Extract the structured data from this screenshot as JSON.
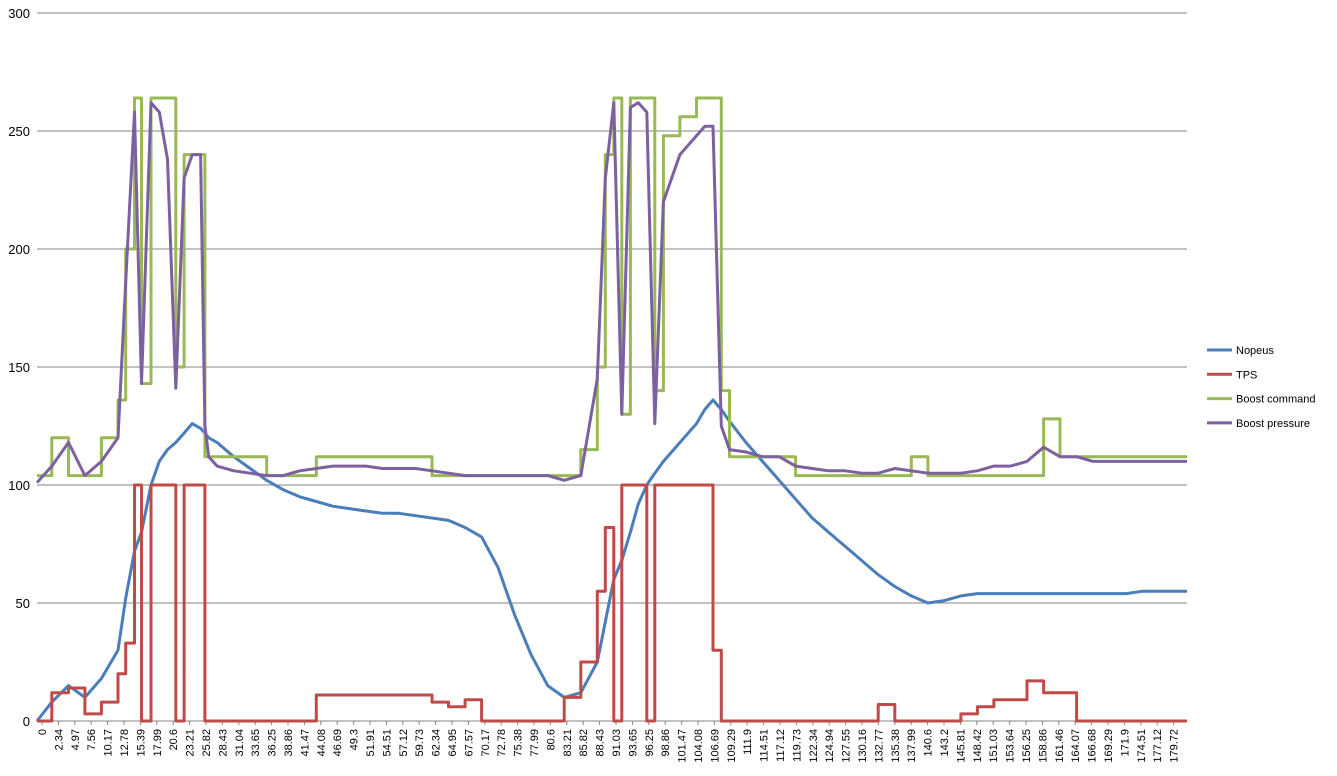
{
  "chart_data": {
    "type": "line",
    "title": "",
    "xlabel": "",
    "ylabel": "",
    "ylim": [
      0,
      300
    ],
    "yticks": [
      0,
      50,
      100,
      150,
      200,
      250,
      300
    ],
    "grid": "horizontal",
    "legend_position": "right",
    "x_tick_labels": [
      "0",
      "2.34",
      "4.97",
      "7.56",
      "10.17",
      "12.78",
      "15.39",
      "17.99",
      "20.6",
      "23.21",
      "25.82",
      "28.43",
      "31.04",
      "33.65",
      "36.25",
      "38.86",
      "41.47",
      "44.08",
      "46.69",
      "49.3",
      "51.91",
      "54.51",
      "57.12",
      "59.73",
      "62.34",
      "64.95",
      "67.57",
      "70.17",
      "72.78",
      "75.38",
      "77.99",
      "80.6",
      "83.21",
      "85.82",
      "88.43",
      "91.03",
      "93.65",
      "96.25",
      "98.86",
      "101.47",
      "104.08",
      "106.69",
      "109.29",
      "111.9",
      "114.51",
      "117.12",
      "119.73",
      "122.34",
      "124.94",
      "127.55",
      "130.16",
      "132.77",
      "135.38",
      "137.99",
      "140.6",
      "143.2",
      "145.81",
      "148.42",
      "151.03",
      "153.64",
      "156.25",
      "158.86",
      "161.46",
      "164.07",
      "166.68",
      "169.29",
      "171.9",
      "174.51",
      "177.12",
      "179.72"
    ],
    "x": [
      0,
      2.34,
      4.97,
      7.56,
      10.17,
      12.78,
      14.0,
      15.39,
      16.5,
      17.99,
      19.3,
      20.6,
      21.9,
      23.21,
      24.5,
      25.82,
      26.5,
      27.1,
      28.43,
      31.04,
      33.65,
      36.25,
      38.86,
      41.47,
      44.08,
      46.69,
      49.3,
      51.91,
      54.51,
      57.12,
      59.73,
      62.34,
      64.95,
      67.57,
      70.17,
      72.78,
      75.38,
      77.99,
      80.6,
      83.21,
      85.82,
      88.43,
      89.7,
      91.03,
      92.3,
      93.65,
      94.9,
      96.25,
      97.5,
      98.86,
      101.47,
      104.08,
      105.4,
      106.69,
      108.0,
      109.29,
      111.9,
      114.51,
      117.12,
      119.73,
      122.34,
      124.94,
      127.55,
      130.16,
      132.77,
      135.38,
      137.99,
      140.6,
      143.2,
      145.81,
      148.42,
      151.03,
      153.64,
      156.25,
      158.86,
      161.46,
      164.07,
      166.68,
      169.29,
      171.9,
      174.51,
      177.12,
      179.72,
      181.5
    ],
    "series": [
      {
        "name": "Nopeus",
        "color": "#4a7ebb",
        "values": [
          0,
          8,
          15,
          10,
          18,
          30,
          52,
          72,
          80,
          100,
          110,
          115,
          118,
          122,
          126,
          124,
          122,
          120,
          118,
          112,
          107,
          102,
          98,
          95,
          93,
          91,
          90,
          89,
          88,
          88,
          87,
          86,
          85,
          82,
          78,
          65,
          45,
          28,
          15,
          10,
          12,
          25,
          42,
          60,
          68,
          80,
          92,
          100,
          105,
          110,
          118,
          126,
          132,
          136,
          132,
          127,
          118,
          110,
          102,
          94,
          86,
          80,
          74,
          68,
          62,
          57,
          53,
          50,
          51,
          53,
          54,
          54,
          54,
          54,
          54,
          54,
          54,
          54,
          54,
          54,
          55,
          55,
          55,
          55
        ]
      },
      {
        "name": "TPS",
        "color": "#be4b48",
        "values": [
          0,
          12,
          14,
          3,
          8,
          20,
          33,
          100,
          0,
          100,
          100,
          100,
          0,
          100,
          100,
          100,
          0,
          0,
          0,
          0,
          0,
          0,
          0,
          0,
          11,
          11,
          11,
          11,
          11,
          11,
          11,
          8,
          6,
          9,
          0,
          0,
          0,
          0,
          0,
          10,
          25,
          55,
          82,
          0,
          100,
          100,
          100,
          0,
          100,
          100,
          100,
          100,
          100,
          30,
          0,
          0,
          0,
          0,
          0,
          0,
          0,
          0,
          0,
          0,
          7,
          0,
          0,
          0,
          0,
          3,
          6,
          9,
          9,
          17,
          12,
          12,
          0,
          0,
          0,
          0,
          0,
          0,
          0,
          0
        ]
      },
      {
        "name": "Boost command",
        "color": "#98b954",
        "values": [
          104,
          120,
          104,
          104,
          120,
          136,
          200,
          264,
          143,
          264,
          264,
          264,
          150,
          240,
          240,
          240,
          112,
          112,
          112,
          112,
          112,
          104,
          104,
          104,
          112,
          112,
          112,
          112,
          112,
          112,
          112,
          104,
          104,
          104,
          104,
          104,
          104,
          104,
          104,
          104,
          115,
          150,
          240,
          264,
          130,
          264,
          264,
          264,
          140,
          248,
          256,
          264,
          264,
          264,
          140,
          112,
          112,
          112,
          112,
          104,
          104,
          104,
          104,
          104,
          104,
          104,
          112,
          104,
          104,
          104,
          104,
          104,
          104,
          104,
          128,
          112,
          112,
          112,
          112,
          112,
          112,
          112,
          112,
          112
        ]
      },
      {
        "name": "Boost pressure",
        "color": "#7d60a0",
        "values": [
          101,
          108,
          118,
          104,
          110,
          120,
          186,
          258,
          143,
          262,
          258,
          238,
          141,
          230,
          240,
          240,
          125,
          112,
          108,
          106,
          105,
          104,
          104,
          106,
          107,
          108,
          108,
          108,
          107,
          107,
          107,
          106,
          105,
          104,
          104,
          104,
          104,
          104,
          104,
          102,
          104,
          145,
          230,
          262,
          130,
          260,
          262,
          258,
          126,
          220,
          240,
          248,
          252,
          252,
          125,
          115,
          114,
          112,
          112,
          108,
          107,
          106,
          106,
          105,
          105,
          107,
          106,
          105,
          105,
          105,
          106,
          108,
          108,
          110,
          116,
          112,
          112,
          110,
          110,
          110,
          110,
          110,
          110,
          110
        ]
      }
    ]
  }
}
